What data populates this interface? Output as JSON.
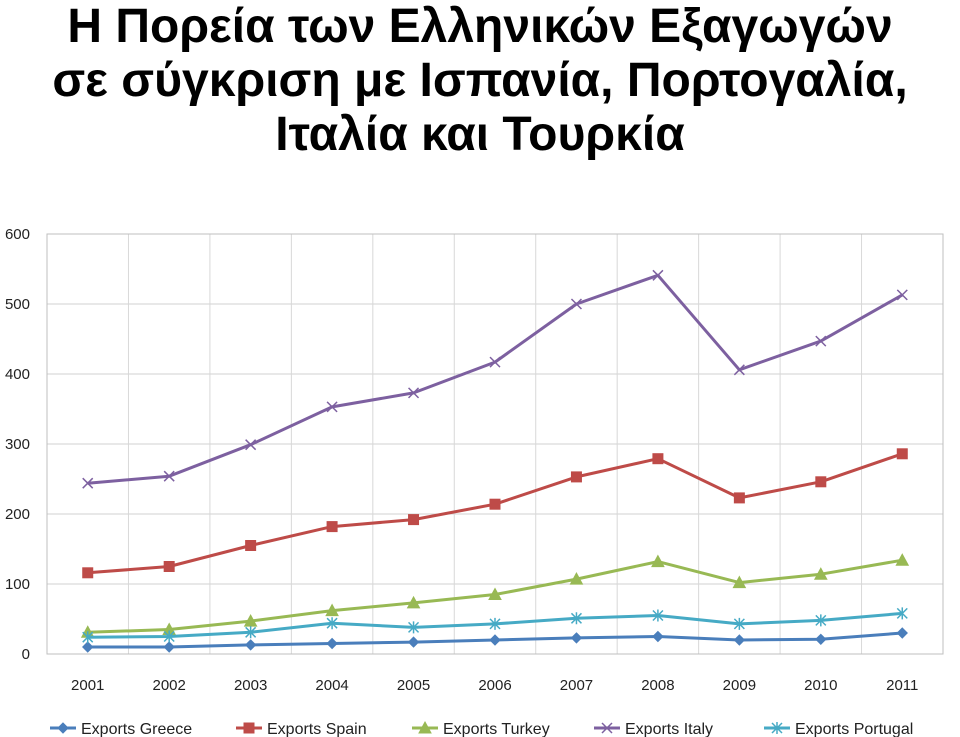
{
  "chart_data": {
    "type": "line",
    "title": [
      "Η Πορεία των Ελληνικών Εξαγωγών",
      "σε σύγκριση με Ισπανία, Πορτογαλία,",
      "Ιταλία και Τουρκία"
    ],
    "xlabel": "",
    "ylabel": "",
    "ylim": [
      0,
      600
    ],
    "yticks": [
      "0",
      "100",
      "200",
      "300",
      "400",
      "500",
      "600"
    ],
    "categories": [
      "2001",
      "2002",
      "2003",
      "2004",
      "2005",
      "2006",
      "2007",
      "2008",
      "2009",
      "2010",
      "2011"
    ],
    "grid": true,
    "legend_position": "bottom",
    "series": [
      {
        "name": "Exports Greece",
        "color": "#4a7ebb",
        "marker": "diamond",
        "values": [
          10,
          10,
          13,
          15,
          17,
          20,
          23,
          25,
          20,
          21,
          30
        ]
      },
      {
        "name": "Exports Spain",
        "color": "#be4b48",
        "marker": "square",
        "values": [
          116,
          125,
          155,
          182,
          192,
          214,
          253,
          279,
          223,
          246,
          286
        ]
      },
      {
        "name": "Exports Turkey",
        "color": "#98b954",
        "marker": "triangle",
        "values": [
          31,
          35,
          47,
          62,
          73,
          85,
          107,
          132,
          102,
          114,
          134
        ]
      },
      {
        "name": "Exports Italy",
        "color": "#7d60a0",
        "marker": "x",
        "values": [
          244,
          254,
          299,
          353,
          373,
          417,
          500,
          541,
          406,
          447,
          513
        ]
      },
      {
        "name": "Exports Portugal",
        "color": "#46aac5",
        "marker": "star",
        "values": [
          24,
          25,
          31,
          44,
          38,
          43,
          51,
          55,
          43,
          48,
          58
        ]
      }
    ]
  }
}
